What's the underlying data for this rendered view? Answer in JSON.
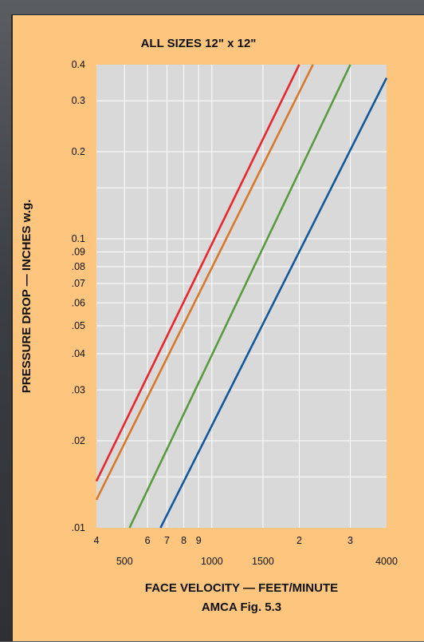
{
  "chart_data": {
    "type": "line",
    "title": "ALL SIZES 12\" x 12\"",
    "xlabel": "FACE VELOCITY — FEET/MINUTE",
    "ylabel": "PRESSURE DROP  —  INCHES w.g.",
    "caption": "AMCA Fig. 5.3",
    "x_scale": "log",
    "y_scale": "log",
    "xlim": [
      400,
      4000
    ],
    "ylim": [
      0.01,
      0.4
    ],
    "grid": true,
    "x_ticks_upper": [
      {
        "value": 400,
        "label": "4"
      },
      {
        "value": 600,
        "label": "6"
      },
      {
        "value": 700,
        "label": "7"
      },
      {
        "value": 800,
        "label": "8"
      },
      {
        "value": 900,
        "label": "9"
      },
      {
        "value": 2000,
        "label": "2"
      },
      {
        "value": 3000,
        "label": "3"
      }
    ],
    "x_ticks_lower": [
      {
        "value": 500,
        "label": "500"
      },
      {
        "value": 1000,
        "label": "1000"
      },
      {
        "value": 1500,
        "label": "1500"
      },
      {
        "value": 4000,
        "label": "4000"
      }
    ],
    "y_ticks": [
      {
        "value": 0.01,
        "label": ".01"
      },
      {
        "value": 0.02,
        "label": ".02"
      },
      {
        "value": 0.03,
        "label": ".03"
      },
      {
        "value": 0.04,
        "label": ".04"
      },
      {
        "value": 0.05,
        "label": ".05"
      },
      {
        "value": 0.06,
        "label": ".06"
      },
      {
        "value": 0.07,
        "label": ".07"
      },
      {
        "value": 0.08,
        "label": ".08"
      },
      {
        "value": 0.09,
        "label": ".09"
      },
      {
        "value": 0.1,
        "label": "0.1"
      },
      {
        "value": 0.2,
        "label": "0.2"
      },
      {
        "value": 0.3,
        "label": "0.3"
      },
      {
        "value": 0.4,
        "label": "0.4"
      }
    ],
    "series": [
      {
        "color": "#e8262b",
        "x": [
          400,
          2000
        ],
        "y": [
          0.0145,
          0.4
        ]
      },
      {
        "color": "#d9782a",
        "x": [
          400,
          2230
        ],
        "y": [
          0.0125,
          0.4
        ]
      },
      {
        "color": "#5a9a3e",
        "x": [
          520,
          3000
        ],
        "y": [
          0.01,
          0.4
        ]
      },
      {
        "color": "#11589d",
        "x": [
          665,
          4000
        ],
        "y": [
          0.01,
          0.36
        ]
      }
    ]
  }
}
